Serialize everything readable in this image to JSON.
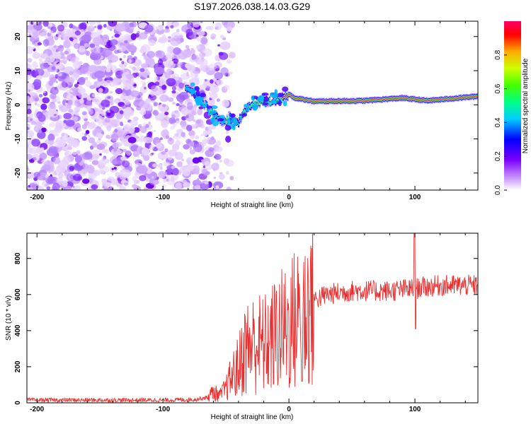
{
  "figure_title": "S197.2026.038.14.03.G29",
  "colorbar": {
    "label": "Normalized spectral amplitude",
    "ticks": [
      "0.0",
      "0.2",
      "0.4",
      "0.6",
      "0.8"
    ]
  },
  "chart_data": [
    {
      "type": "heatmap",
      "title": "",
      "xlabel": "Height of straight line (km)",
      "ylabel": "Frequency (Hz)",
      "xlim": [
        -208,
        150
      ],
      "ylim": [
        -25,
        24.5
      ],
      "xticks": [
        "-200",
        "-100",
        "0",
        "100"
      ],
      "yticks": [
        "-20",
        "-10",
        "0",
        "10",
        "20"
      ],
      "ridge": {
        "description_points_x": [
          -80,
          -72,
          -66,
          -60,
          -52,
          -46,
          -40,
          -35,
          -30,
          -24,
          -15,
          -5,
          0,
          5,
          20,
          60,
          90,
          110,
          150
        ],
        "frequency_hz": [
          5,
          2,
          0,
          -3,
          -5,
          -4,
          -5,
          -2,
          0,
          1,
          1,
          2,
          3,
          2,
          1,
          1.2,
          2,
          1.2,
          2.5
        ]
      },
      "noise_region_x": [
        -208,
        -55
      ]
    },
    {
      "type": "line",
      "title": "",
      "xlabel": "Height of straight line (km)",
      "ylabel": "SNR (10 * v/v)",
      "xlim": [
        -208,
        150
      ],
      "ylim": [
        0,
        940
      ],
      "xticks": [
        "-200",
        "-100",
        "0",
        "100"
      ],
      "yticks": [
        "0",
        "200",
        "400",
        "600",
        "800"
      ],
      "color": "#e83030",
      "series": [
        {
          "name": "SNR",
          "x": [
            -208,
            -150,
            -100,
            -75,
            -65,
            -60,
            -55,
            -50,
            -45,
            -40,
            -35,
            -30,
            -25,
            -20,
            -15,
            -10,
            -5,
            0,
            5,
            10,
            15,
            20,
            30,
            40,
            50,
            60,
            80,
            95,
            100,
            105,
            120,
            150
          ],
          "values": [
            15,
            15,
            15,
            18,
            30,
            60,
            40,
            80,
            150,
            200,
            300,
            320,
            330,
            320,
            340,
            380,
            400,
            430,
            460,
            480,
            530,
            570,
            600,
            610,
            620,
            620,
            620,
            630,
            630,
            640,
            650,
            650
          ]
        }
      ]
    }
  ]
}
